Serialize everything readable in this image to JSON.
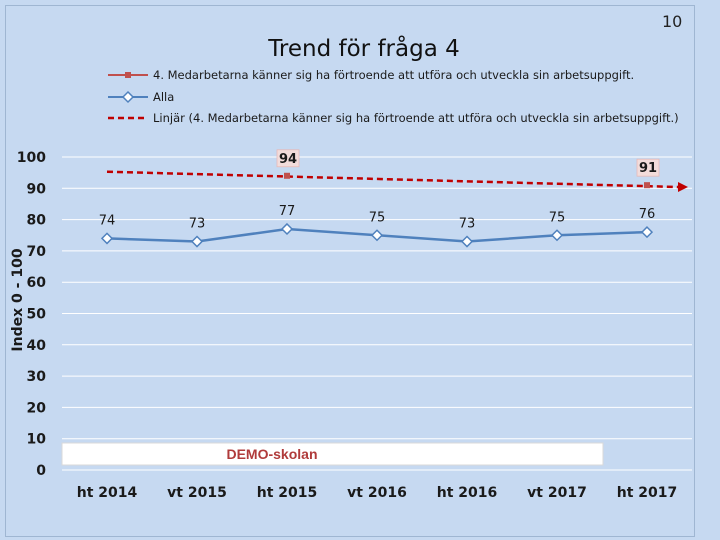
{
  "page_number": "10",
  "colors": {
    "background": "#c6d9f1",
    "series_school": "#c0504d",
    "series_all": "#4f81bd",
    "trendline": "#c00000",
    "label_box_fill": "#f2dcdb",
    "school_label": "#b03b3b"
  },
  "school_label": "DEMO-skolan",
  "chart_data": {
    "type": "line",
    "title": "Trend för fråga 4",
    "ylabel": "Index 0 - 100",
    "xlabel": "",
    "ylim": [
      0,
      100
    ],
    "yticks": [
      "0",
      "10",
      "20",
      "30",
      "40",
      "50",
      "60",
      "70",
      "80",
      "90",
      "100"
    ],
    "categories": [
      "ht 2014",
      "vt 2015",
      "ht 2015",
      "vt 2016",
      "ht 2016",
      "vt 2017",
      "ht 2017"
    ],
    "legend_position": "top",
    "series": [
      {
        "name": "4. Medarbetarna känner sig ha förtroende att utföra och utveckla sin arbetsuppgift.",
        "marker": "square",
        "values": [
          null,
          null,
          94,
          null,
          null,
          null,
          91
        ],
        "data_labels": [
          "",
          "",
          "94",
          "",
          "",
          "",
          "91"
        ]
      },
      {
        "name": "Alla",
        "marker": "diamond",
        "values": [
          74,
          73,
          77,
          75,
          73,
          75,
          76
        ],
        "data_labels": [
          "74",
          "73",
          "77",
          "75",
          "73",
          "75",
          "76"
        ]
      }
    ],
    "trendline": {
      "name": "Linjär (4. Medarbetarna känner sig ha förtroende att utföra och utveckla sin arbetsuppgift.)",
      "style": "dashed",
      "start_value": 95.3,
      "end_value": 90.4
    }
  }
}
